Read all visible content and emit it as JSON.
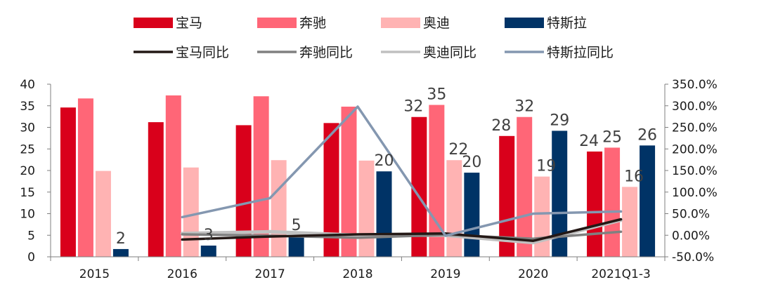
{
  "chart_data": {
    "type": "bar+line",
    "categories": [
      "2015",
      "2016",
      "2017",
      "2018",
      "2019",
      "2020",
      "2021Q1-3"
    ],
    "y_left": {
      "ylim": [
        0,
        40
      ],
      "ticks": [
        "0",
        "5",
        "10",
        "15",
        "20",
        "25",
        "30",
        "35",
        "40"
      ]
    },
    "y_right": {
      "ylim": [
        -50,
        350
      ],
      "ticks": [
        "-50.0%",
        "0.00%",
        "50.0%",
        "100.0%",
        "150.0%",
        "200.0%",
        "250.0%",
        "300.0%",
        "350.0%"
      ]
    },
    "bar_series": [
      {
        "name": "宝马",
        "color": "#d9001b",
        "values": [
          34.6,
          31.2,
          30.5,
          31.0,
          32.4,
          28.0,
          24.4
        ],
        "labels": [
          "",
          "",
          "",
          "",
          "32",
          "28",
          "24"
        ]
      },
      {
        "name": "奔驰",
        "color": "#ff6677",
        "values": [
          36.7,
          37.4,
          37.2,
          34.8,
          35.2,
          32.4,
          25.3
        ],
        "labels": [
          "",
          "",
          "",
          "",
          "35",
          "32",
          "25"
        ]
      },
      {
        "name": "奥迪",
        "color": "#ffb3b3",
        "values": [
          19.9,
          20.7,
          22.4,
          22.3,
          22.4,
          18.6,
          16.2
        ],
        "labels": [
          "",
          "",
          "",
          "",
          "22",
          "19",
          "16"
        ]
      },
      {
        "name": "特斯拉",
        "color": "#003366",
        "values": [
          1.8,
          2.6,
          4.9,
          19.8,
          19.5,
          29.2,
          25.8
        ],
        "labels": [
          "2",
          "3",
          "5",
          "20",
          "20",
          "29",
          "26"
        ]
      }
    ],
    "line_series": [
      {
        "name": "宝马同比",
        "color": "#231815",
        "values": [
          null,
          -10,
          -3,
          2,
          4,
          -13,
          37
        ]
      },
      {
        "name": "奔驰同比",
        "color": "#808080",
        "values": [
          null,
          2,
          -1,
          -6,
          1,
          -8,
          8
        ]
      },
      {
        "name": "奥迪同比",
        "color": "#c0c0c0",
        "values": [
          null,
          4,
          8,
          0,
          0,
          -17,
          35
        ]
      },
      {
        "name": "特斯拉同比",
        "color": "#8497b0",
        "values": [
          null,
          42,
          86,
          298,
          -1,
          50,
          55
        ]
      }
    ]
  }
}
